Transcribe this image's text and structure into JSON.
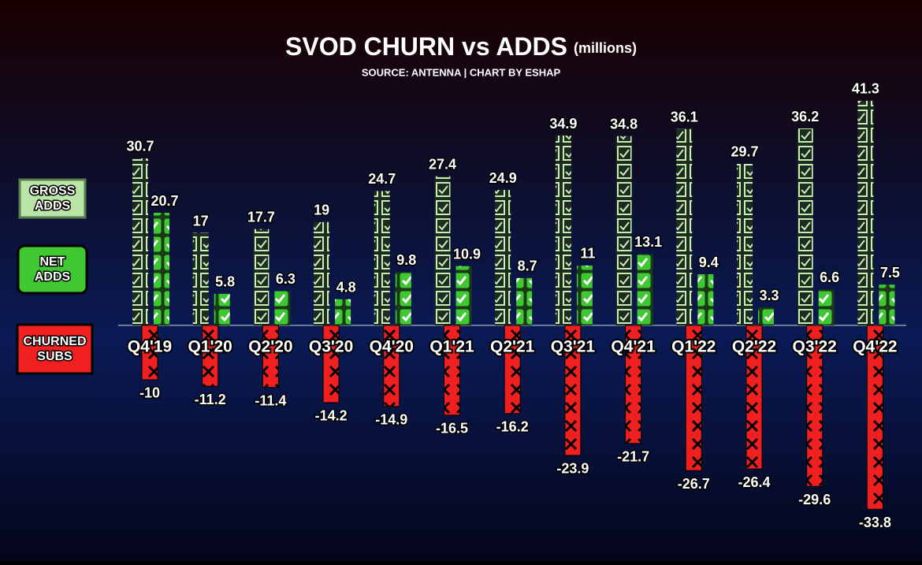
{
  "chart_data": {
    "type": "bar",
    "title": "SVOD CHURN vs ADDS",
    "title_unit": "(millions)",
    "subtitle": "SOURCE: ANTENNA | CHART BY ESHAP",
    "categories": [
      "Q4'19",
      "Q1'20",
      "Q2'20",
      "Q3'20",
      "Q4'20",
      "Q1'21",
      "Q2'21",
      "Q3'21",
      "Q4'21",
      "Q1'22",
      "Q2'22",
      "Q3'22",
      "Q4'22"
    ],
    "series": [
      {
        "name": "GROSS ADDS",
        "color": "#b9e6a6",
        "values": [
          30.7,
          17,
          17.7,
          19,
          24.7,
          27.4,
          24.9,
          34.9,
          34.8,
          36.1,
          29.7,
          36.2,
          41.3
        ]
      },
      {
        "name": "NET ADDS",
        "color": "#3fc832",
        "values": [
          20.7,
          5.8,
          6.3,
          4.8,
          9.8,
          10.9,
          8.7,
          11,
          13.1,
          9.4,
          3.3,
          6.6,
          7.5
        ]
      },
      {
        "name": "CHURNED SUBS",
        "color": "#f02020",
        "values": [
          -10,
          -11.2,
          -11.4,
          -14.2,
          -14.9,
          -16.5,
          -16.2,
          -23.9,
          -21.7,
          -26.7,
          -26.4,
          -29.6,
          -33.8
        ]
      }
    ],
    "ylim": [
      -35,
      42
    ]
  }
}
